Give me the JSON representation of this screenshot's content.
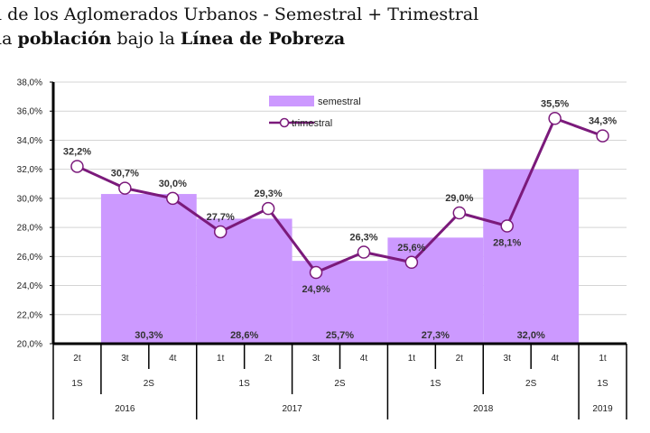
{
  "title": {
    "line1": "l de los Aglomerados Urbanos - Semestral + Trimestral",
    "line2_pre": " la ",
    "line2_bold1": "población",
    "line2_mid": " bajo la ",
    "line2_bold2": "Línea de Pobreza"
  },
  "chart_data": {
    "type": "bar+line",
    "y_ticks": [
      "20,0%",
      "22,0%",
      "24,0%",
      "26,0%",
      "28,0%",
      "30,0%",
      "32,0%",
      "34,0%",
      "36,0%",
      "38,0%"
    ],
    "ylim": [
      20,
      38
    ],
    "quarters": [
      "2t",
      "3t",
      "4t",
      "1t",
      "2t",
      "3t",
      "4t",
      "1t",
      "2t",
      "3t",
      "4t",
      "1t"
    ],
    "semesters": [
      {
        "label": "1S",
        "span": [
          0,
          0
        ]
      },
      {
        "label": "2S",
        "span": [
          1,
          2
        ]
      },
      {
        "label": "1S",
        "span": [
          3,
          4
        ]
      },
      {
        "label": "2S",
        "span": [
          5,
          6
        ]
      },
      {
        "label": "1S",
        "span": [
          7,
          8
        ]
      },
      {
        "label": "2S",
        "span": [
          9,
          10
        ]
      },
      {
        "label": "1S",
        "span": [
          11,
          11
        ]
      }
    ],
    "years": [
      {
        "label": "2016",
        "span": [
          0,
          2
        ]
      },
      {
        "label": "2017",
        "span": [
          3,
          6
        ]
      },
      {
        "label": "2018",
        "span": [
          7,
          10
        ]
      },
      {
        "label": "2019",
        "span": [
          11,
          11
        ]
      }
    ],
    "series": [
      {
        "name": "semestral",
        "type": "bar",
        "color": "#cc99ff",
        "bars": [
          {
            "span": [
              1,
              2
            ],
            "value": 30.3,
            "label": "30,3%"
          },
          {
            "span": [
              3,
              4
            ],
            "value": 28.6,
            "label": "28,6%"
          },
          {
            "span": [
              5,
              6
            ],
            "value": 25.7,
            "label": "25,7%"
          },
          {
            "span": [
              7,
              8
            ],
            "value": 27.3,
            "label": "27,3%"
          },
          {
            "span": [
              9,
              10
            ],
            "value": 32.0,
            "label": "32,0%"
          }
        ]
      },
      {
        "name": "trimestral",
        "type": "line",
        "color": "#7b1a7b",
        "values": [
          32.2,
          30.7,
          30.0,
          27.7,
          29.3,
          24.9,
          26.3,
          25.6,
          29.0,
          28.1,
          35.5,
          34.3
        ],
        "labels": [
          "32,2%",
          "30,7%",
          "30,0%",
          "27,7%",
          "29,3%",
          "24,9%",
          "26,3%",
          "25,6%",
          "29,0%",
          "28,1%",
          "35,5%",
          "34,3%"
        ],
        "label_pos": [
          "above",
          "above",
          "above",
          "above",
          "above",
          "below",
          "above",
          "above",
          "above",
          "below",
          "above",
          "above"
        ]
      }
    ],
    "legend": {
      "position": "top-center"
    }
  }
}
